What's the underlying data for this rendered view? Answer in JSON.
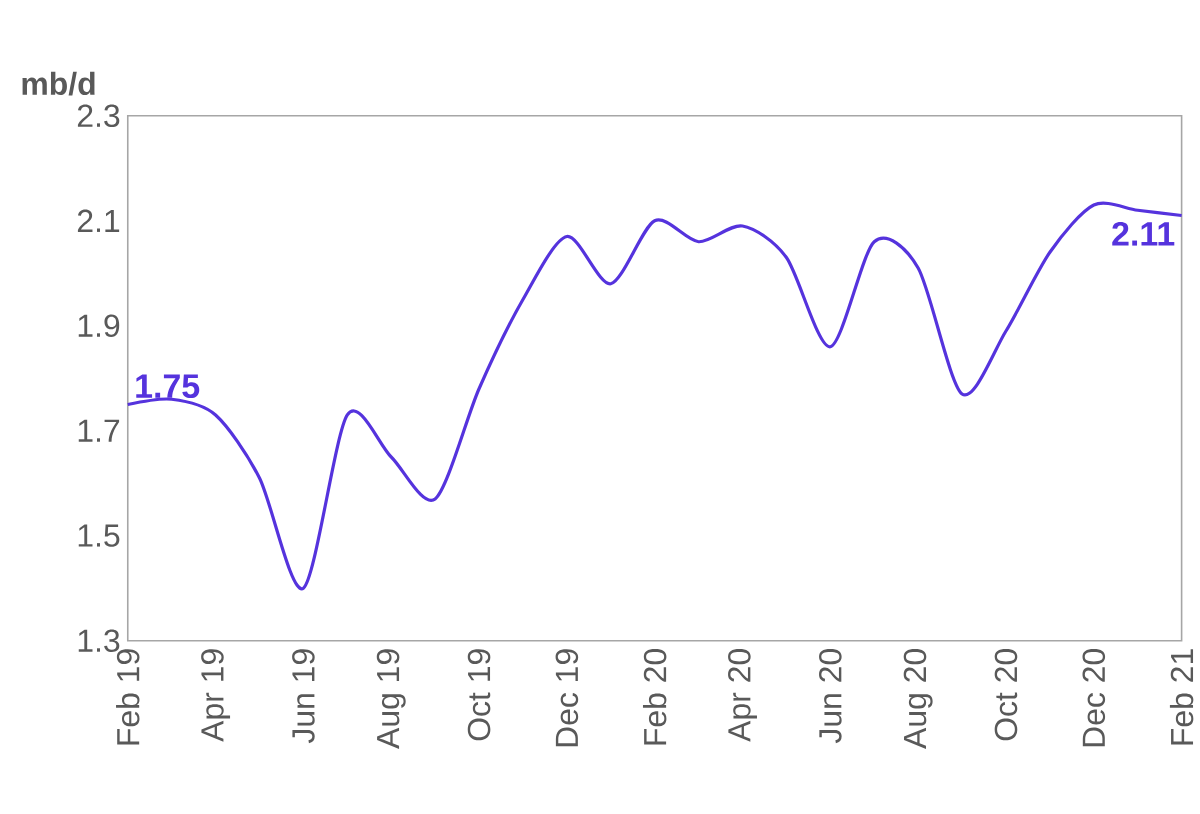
{
  "chart_data": {
    "type": "line",
    "ylabel": "mb/d",
    "categories": [
      "Feb 19",
      null,
      "Apr 19",
      null,
      "Jun 19",
      null,
      "Aug 19",
      null,
      "Oct 19",
      null,
      "Dec 19",
      null,
      "Feb 20",
      null,
      "Apr 20",
      null,
      "Jun 20",
      null,
      "Aug 20",
      null,
      "Oct 20",
      null,
      "Dec 20",
      null,
      "Feb 21"
    ],
    "values": [
      1.75,
      1.76,
      1.73,
      1.61,
      1.4,
      1.73,
      1.65,
      1.57,
      1.78,
      1.95,
      2.07,
      1.98,
      2.1,
      2.06,
      2.09,
      2.03,
      1.86,
      2.06,
      2.01,
      1.77,
      1.89,
      2.04,
      2.13,
      2.12,
      2.11
    ],
    "value_labels": [
      "1.75",
      null,
      null,
      null,
      null,
      null,
      null,
      null,
      null,
      null,
      null,
      null,
      null,
      null,
      null,
      null,
      null,
      null,
      null,
      null,
      null,
      null,
      null,
      null,
      "2.11"
    ],
    "color": "#5533dd",
    "ylim": [
      1.3,
      2.3
    ],
    "yticks": [
      1.3,
      1.5,
      1.7,
      1.9,
      2.1,
      2.3
    ]
  }
}
